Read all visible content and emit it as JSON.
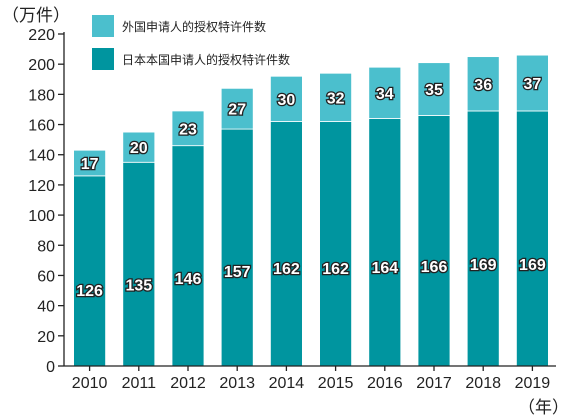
{
  "chart_data": {
    "type": "bar",
    "stacked": true,
    "ylabel": "（万件）",
    "xlabel": "（年）",
    "ylim": [
      0,
      220
    ],
    "yticks": [
      0,
      20,
      40,
      60,
      80,
      100,
      120,
      140,
      160,
      180,
      200,
      220
    ],
    "grid": false,
    "legend_position": "top-left",
    "categories": [
      "2010",
      "2011",
      "2012",
      "2013",
      "2014",
      "2015",
      "2016",
      "2017",
      "2018",
      "2019"
    ],
    "series": [
      {
        "name": "日本本国申请人的授权特许件数",
        "color": "#00959f",
        "values": [
          126,
          135,
          146,
          157,
          162,
          162,
          164,
          166,
          169,
          169
        ]
      },
      {
        "name": "外国申请人的授权特许件数",
        "color": "#4bbfcd",
        "values": [
          17,
          20,
          23,
          27,
          30,
          32,
          34,
          35,
          36,
          37
        ]
      }
    ]
  }
}
